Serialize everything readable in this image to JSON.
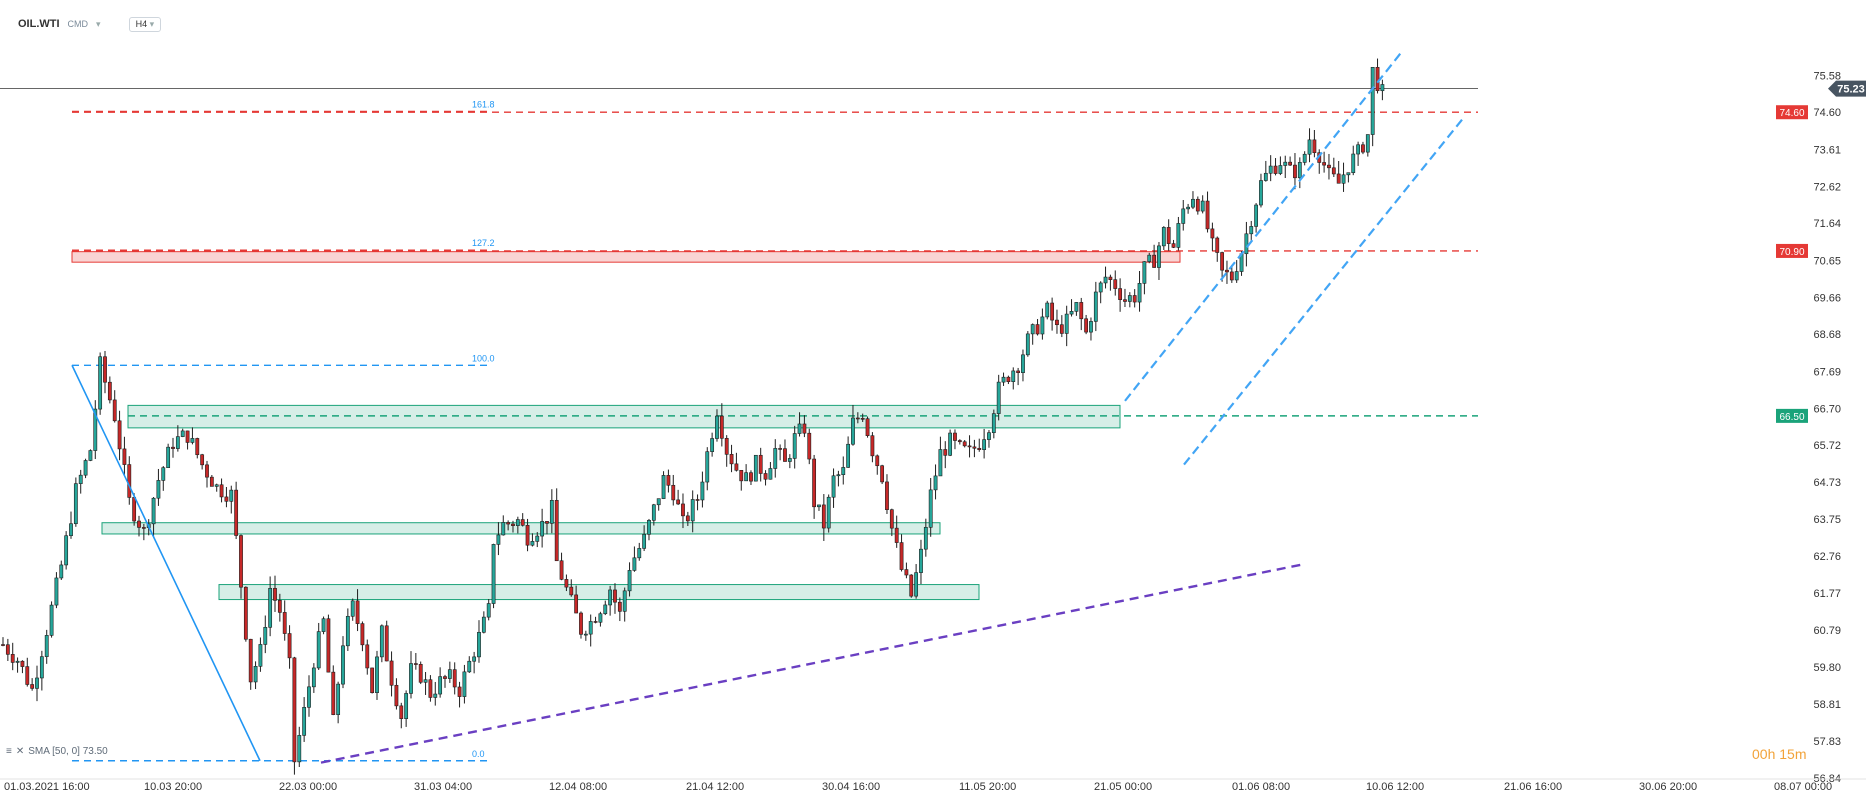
{
  "header": {
    "symbol": "OIL.WTI",
    "group": "CMD",
    "timeframe": "H4"
  },
  "sma_label": "SMA [50, 0] 73.50",
  "timer": "00h 15m",
  "colors": {
    "up": "#26a69a",
    "down": "#c62828",
    "candle_body": "#1e1e1e",
    "red_line": "#e53935",
    "green_line": "#1aa37a",
    "blue_line": "#2196f3",
    "channel": "#42a5f5",
    "purple": "#6a3fc2",
    "current_price_bg": "#475461"
  },
  "chart_data": {
    "type": "candlestick",
    "instrument": "OIL.WTI",
    "timeframe": "H4",
    "ylim": [
      56.84,
      76.5
    ],
    "y_ticks": [
      "75.58",
      "74.60",
      "73.61",
      "72.62",
      "71.64",
      "70.65",
      "69.66",
      "68.68",
      "67.69",
      "66.70",
      "65.72",
      "64.73",
      "63.75",
      "62.76",
      "61.77",
      "60.79",
      "59.80",
      "58.81",
      "57.83",
      "56.84"
    ],
    "x_ticks": [
      "01.03.2021 16:00",
      "10.03 20:00",
      "22.03 00:00",
      "31.03 04:00",
      "12.04 08:00",
      "21.04 12:00",
      "30.04 16:00",
      "11.05 20:00",
      "21.05 00:00",
      "01.06 08:00",
      "10.06 12:00",
      "21.06 16:00",
      "30.06 20:00",
      "08.07 00:00"
    ],
    "current_price": "75.23",
    "price_levels": [
      {
        "value": 74.6,
        "label": "74.60",
        "color": "red"
      },
      {
        "value": 70.9,
        "label": "70.90",
        "color": "red"
      },
      {
        "value": 66.5,
        "label": "66.50",
        "color": "green"
      }
    ],
    "fibonacci": [
      {
        "label": "161.8",
        "value": 74.62
      },
      {
        "label": "127.2",
        "value": 70.92
      },
      {
        "label": "100.0",
        "value": 67.85
      },
      {
        "label": "0.0",
        "value": 57.3
      }
    ],
    "series_path": [
      [
        0,
        60.4
      ],
      [
        3,
        60.0
      ],
      [
        6,
        59.2
      ],
      [
        9,
        60.8
      ],
      [
        12,
        62.5
      ],
      [
        15,
        64.5
      ],
      [
        18,
        65.6
      ],
      [
        20,
        67.85
      ],
      [
        23,
        66.5
      ],
      [
        26,
        64.2
      ],
      [
        29,
        63.4
      ],
      [
        32,
        64.8
      ],
      [
        35,
        65.8
      ],
      [
        38,
        66.0
      ],
      [
        41,
        65.2
      ],
      [
        44,
        64.6
      ],
      [
        47,
        64.4
      ],
      [
        49,
        62.0
      ],
      [
        51,
        59.5
      ],
      [
        53,
        60.2
      ],
      [
        55,
        61.9
      ],
      [
        57,
        61.3
      ],
      [
        59,
        59.8
      ],
      [
        60,
        57.3
      ],
      [
        62,
        58.6
      ],
      [
        64,
        60.0
      ],
      [
        66,
        61.0
      ],
      [
        68,
        58.3
      ],
      [
        70,
        60.5
      ],
      [
        72,
        61.4
      ],
      [
        74,
        60.6
      ],
      [
        76,
        59.2
      ],
      [
        78,
        60.7
      ],
      [
        80,
        59.5
      ],
      [
        82,
        58.5
      ],
      [
        84,
        59.7
      ],
      [
        86,
        59.6
      ],
      [
        88,
        59.1
      ],
      [
        90,
        59.4
      ],
      [
        92,
        59.5
      ],
      [
        94,
        59.2
      ],
      [
        96,
        59.9
      ],
      [
        98,
        60.6
      ],
      [
        100,
        61.3
      ],
      [
        101,
        63.2
      ],
      [
        103,
        63.6
      ],
      [
        106,
        63.7
      ],
      [
        108,
        63.3
      ],
      [
        111,
        63.6
      ],
      [
        113,
        64.0
      ],
      [
        114,
        62.6
      ],
      [
        117,
        61.5
      ],
      [
        119,
        60.8
      ],
      [
        121,
        61.0
      ],
      [
        123,
        61.4
      ],
      [
        125,
        61.9
      ],
      [
        127,
        61.2
      ],
      [
        129,
        62.5
      ],
      [
        132,
        63.2
      ],
      [
        134,
        64.0
      ],
      [
        136,
        64.8
      ],
      [
        138,
        64.5
      ],
      [
        140,
        63.6
      ],
      [
        143,
        64.3
      ],
      [
        145,
        65.5
      ],
      [
        147,
        66.7
      ],
      [
        149,
        65.6
      ],
      [
        151,
        65.1
      ],
      [
        153,
        64.8
      ],
      [
        155,
        65.2
      ],
      [
        157,
        65.0
      ],
      [
        159,
        65.6
      ],
      [
        161,
        65.2
      ],
      [
        163,
        65.9
      ],
      [
        165,
        66.2
      ],
      [
        167,
        64.2
      ],
      [
        169,
        63.6
      ],
      [
        171,
        64.8
      ],
      [
        173,
        65.0
      ],
      [
        175,
        66.3
      ],
      [
        177,
        66.6
      ],
      [
        179,
        65.6
      ],
      [
        181,
        64.9
      ],
      [
        183,
        63.5
      ],
      [
        185,
        62.4
      ],
      [
        187,
        61.7
      ],
      [
        189,
        62.8
      ],
      [
        191,
        64.4
      ],
      [
        193,
        65.5
      ],
      [
        195,
        65.8
      ],
      [
        197,
        65.6
      ],
      [
        199,
        65.5
      ],
      [
        201,
        65.8
      ],
      [
        203,
        66.3
      ],
      [
        205,
        67.2
      ],
      [
        207,
        67.6
      ],
      [
        209,
        67.9
      ],
      [
        211,
        68.5
      ],
      [
        213,
        68.9
      ],
      [
        215,
        69.3
      ],
      [
        217,
        68.8
      ],
      [
        219,
        69.0
      ],
      [
        221,
        69.4
      ],
      [
        223,
        68.7
      ],
      [
        225,
        69.7
      ],
      [
        227,
        70.2
      ],
      [
        229,
        70.0
      ],
      [
        231,
        69.6
      ],
      [
        233,
        69.7
      ],
      [
        235,
        70.4
      ],
      [
        237,
        70.7
      ],
      [
        239,
        71.4
      ],
      [
        241,
        71.0
      ],
      [
        243,
        72.0
      ],
      [
        245,
        72.4
      ],
      [
        247,
        72.0
      ],
      [
        249,
        71.0
      ],
      [
        251,
        70.3
      ],
      [
        253,
        70.2
      ],
      [
        255,
        70.9
      ],
      [
        257,
        71.8
      ],
      [
        259,
        72.7
      ],
      [
        261,
        73.1
      ],
      [
        263,
        73.3
      ],
      [
        265,
        73.0
      ],
      [
        267,
        73.1
      ],
      [
        269,
        73.9
      ],
      [
        271,
        73.5
      ],
      [
        273,
        72.9
      ],
      [
        275,
        72.7
      ],
      [
        277,
        73.2
      ],
      [
        279,
        73.5
      ],
      [
        281,
        74.0
      ],
      [
        282,
        75.7
      ],
      [
        284,
        75.1
      ]
    ],
    "channel": {
      "upper": [
        [
          1125,
          66.9
        ],
        [
          1402,
          76.22
        ]
      ],
      "lower": [
        [
          1184,
          65.2
        ],
        [
          1462,
          74.4
        ]
      ]
    },
    "trendline": [
      [
        321,
        57.25
      ],
      [
        1305,
        62.55
      ]
    ],
    "fib_swing": [
      [
        88,
        67.85
      ],
      [
        317,
        57.3
      ]
    ],
    "zones": [
      {
        "from": 66.78,
        "to": 66.18,
        "color": "green"
      },
      {
        "from": 63.65,
        "to": 63.35,
        "color": "green"
      },
      {
        "from": 62.0,
        "to": 61.6,
        "color": "green"
      },
      {
        "from": 70.88,
        "to": 70.6,
        "color": "red"
      }
    ]
  }
}
